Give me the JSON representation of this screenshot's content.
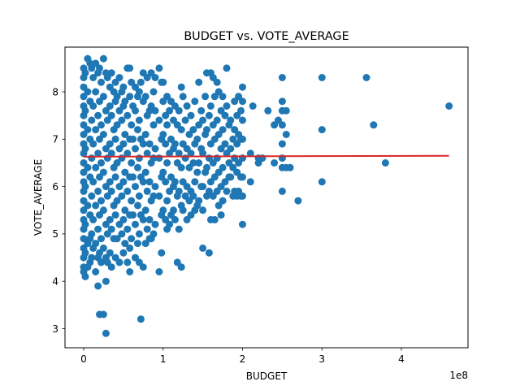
{
  "chart_data": {
    "type": "scatter",
    "title": "BUDGET vs. VOTE_AVERAGE",
    "xlabel": "BUDGET",
    "ylabel": "VOTE_AVERAGE",
    "x_offset_label": "1e8",
    "x_tick_labels": [
      "0",
      "1",
      "2",
      "3",
      "4"
    ],
    "y_tick_labels": [
      "3",
      "4",
      "5",
      "6",
      "7",
      "8"
    ],
    "point_color": "#1f77b4",
    "fit_line_color": "#d62728",
    "grid": false,
    "legend": "none",
    "points": [
      [
        0,
        8.5
      ],
      [
        0,
        8.3
      ],
      [
        0,
        8.1
      ],
      [
        0,
        7.9
      ],
      [
        0,
        7.7
      ],
      [
        0,
        7.5
      ],
      [
        0,
        7.3
      ],
      [
        0,
        7.1
      ],
      [
        0,
        6.9
      ],
      [
        0,
        6.7
      ],
      [
        0,
        6.5
      ],
      [
        0,
        6.3
      ],
      [
        0,
        6.1
      ],
      [
        0,
        5.9
      ],
      [
        0,
        5.7
      ],
      [
        0,
        5.5
      ],
      [
        0,
        5.3
      ],
      [
        0,
        5.1
      ],
      [
        0,
        4.9
      ],
      [
        0,
        4.7
      ],
      [
        0,
        4.5
      ],
      [
        0,
        4.3
      ],
      [
        0,
        4.2
      ],
      [
        2,
        8.4
      ],
      [
        2,
        7.6
      ],
      [
        2,
        6.8
      ],
      [
        2,
        6.0
      ],
      [
        2,
        5.2
      ],
      [
        2,
        4.6
      ],
      [
        2,
        4.1
      ],
      [
        5,
        8.7
      ],
      [
        5,
        8.0
      ],
      [
        5,
        7.2
      ],
      [
        5,
        6.4
      ],
      [
        5,
        5.6
      ],
      [
        5,
        4.8
      ],
      [
        5,
        4.3
      ],
      [
        8,
        8.6
      ],
      [
        8,
        7.8
      ],
      [
        8,
        7.0
      ],
      [
        8,
        6.2
      ],
      [
        8,
        5.4
      ],
      [
        8,
        4.9
      ],
      [
        8,
        4.4
      ],
      [
        10,
        8.5
      ],
      [
        10,
        7.4
      ],
      [
        10,
        6.6
      ],
      [
        10,
        5.8
      ],
      [
        10,
        5.0
      ],
      [
        10,
        4.5
      ],
      [
        12,
        8.3
      ],
      [
        12,
        7.7
      ],
      [
        12,
        6.9
      ],
      [
        12,
        6.1
      ],
      [
        12,
        5.3
      ],
      [
        12,
        4.7
      ],
      [
        15,
        8.6
      ],
      [
        15,
        8.0
      ],
      [
        15,
        7.2
      ],
      [
        15,
        6.4
      ],
      [
        15,
        5.6
      ],
      [
        15,
        4.8
      ],
      [
        15,
        4.2
      ],
      [
        18,
        8.4
      ],
      [
        18,
        7.5
      ],
      [
        18,
        6.7
      ],
      [
        18,
        5.9
      ],
      [
        18,
        5.1
      ],
      [
        18,
        4.5
      ],
      [
        18,
        3.9
      ],
      [
        20,
        8.5
      ],
      [
        20,
        7.8
      ],
      [
        20,
        7.0
      ],
      [
        20,
        6.2
      ],
      [
        20,
        5.4
      ],
      [
        20,
        4.6
      ],
      [
        20,
        3.3
      ],
      [
        22,
        8.2
      ],
      [
        22,
        7.3
      ],
      [
        22,
        6.5
      ],
      [
        22,
        5.7
      ],
      [
        22,
        4.9
      ],
      [
        22,
        4.4
      ],
      [
        25,
        8.7
      ],
      [
        25,
        7.9
      ],
      [
        25,
        7.1
      ],
      [
        25,
        6.3
      ],
      [
        25,
        5.5
      ],
      [
        25,
        4.7
      ],
      [
        25,
        3.3
      ],
      [
        28,
        8.4
      ],
      [
        28,
        7.6
      ],
      [
        28,
        6.8
      ],
      [
        28,
        6.0
      ],
      [
        28,
        5.2
      ],
      [
        28,
        4.5
      ],
      [
        28,
        4.0
      ],
      [
        28,
        2.9
      ],
      [
        30,
        8.3
      ],
      [
        30,
        7.4
      ],
      [
        30,
        6.6
      ],
      [
        30,
        5.8
      ],
      [
        30,
        5.0
      ],
      [
        30,
        4.4
      ],
      [
        33,
        8.1
      ],
      [
        33,
        7.7
      ],
      [
        33,
        6.9
      ],
      [
        33,
        6.1
      ],
      [
        33,
        5.3
      ],
      [
        33,
        4.6
      ],
      [
        35,
        8.4
      ],
      [
        35,
        7.5
      ],
      [
        35,
        6.7
      ],
      [
        35,
        5.9
      ],
      [
        35,
        5.1
      ],
      [
        35,
        4.3
      ],
      [
        38,
        8.0
      ],
      [
        38,
        7.2
      ],
      [
        38,
        6.4
      ],
      [
        38,
        5.6
      ],
      [
        38,
        4.9
      ],
      [
        40,
        8.2
      ],
      [
        40,
        7.8
      ],
      [
        40,
        7.0
      ],
      [
        40,
        6.2
      ],
      [
        40,
        5.4
      ],
      [
        40,
        4.5
      ],
      [
        42,
        7.9
      ],
      [
        42,
        7.3
      ],
      [
        42,
        6.5
      ],
      [
        42,
        5.7
      ],
      [
        42,
        4.9
      ],
      [
        45,
        8.3
      ],
      [
        45,
        7.6
      ],
      [
        45,
        6.8
      ],
      [
        45,
        6.0
      ],
      [
        45,
        5.2
      ],
      [
        45,
        4.4
      ],
      [
        48,
        8.0
      ],
      [
        48,
        7.4
      ],
      [
        48,
        6.6
      ],
      [
        48,
        5.8
      ],
      [
        48,
        5.0
      ],
      [
        50,
        8.1
      ],
      [
        50,
        7.7
      ],
      [
        50,
        6.9
      ],
      [
        50,
        6.1
      ],
      [
        50,
        5.3
      ],
      [
        50,
        4.6
      ],
      [
        52,
        7.8
      ],
      [
        52,
        7.1
      ],
      [
        52,
        6.3
      ],
      [
        52,
        5.5
      ],
      [
        52,
        4.8
      ],
      [
        55,
        8.5
      ],
      [
        55,
        7.5
      ],
      [
        55,
        6.7
      ],
      [
        55,
        5.9
      ],
      [
        55,
        5.1
      ],
      [
        55,
        4.4
      ],
      [
        58,
        8.5
      ],
      [
        58,
        7.9
      ],
      [
        58,
        7.0
      ],
      [
        58,
        6.2
      ],
      [
        58,
        5.4
      ],
      [
        58,
        4.7
      ],
      [
        58,
        4.2
      ],
      [
        60,
        8.2
      ],
      [
        60,
        7.3
      ],
      [
        60,
        6.5
      ],
      [
        60,
        5.7
      ],
      [
        60,
        4.9
      ],
      [
        62,
        7.7
      ],
      [
        62,
        7.0
      ],
      [
        62,
        6.2
      ],
      [
        62,
        5.4
      ],
      [
        65,
        8.1
      ],
      [
        65,
        7.6
      ],
      [
        65,
        6.8
      ],
      [
        65,
        6.0
      ],
      [
        65,
        5.2
      ],
      [
        65,
        4.5
      ],
      [
        68,
        7.9
      ],
      [
        68,
        7.2
      ],
      [
        68,
        6.4
      ],
      [
        68,
        5.6
      ],
      [
        68,
        4.8
      ],
      [
        70,
        8.0
      ],
      [
        70,
        7.4
      ],
      [
        70,
        6.6
      ],
      [
        70,
        5.8
      ],
      [
        70,
        5.0
      ],
      [
        70,
        4.4
      ],
      [
        72,
        8.2
      ],
      [
        72,
        7.0
      ],
      [
        72,
        6.2
      ],
      [
        72,
        5.4
      ],
      [
        72,
        3.2
      ],
      [
        75,
        8.4
      ],
      [
        75,
        7.8
      ],
      [
        75,
        6.9
      ],
      [
        75,
        6.1
      ],
      [
        75,
        5.3
      ],
      [
        75,
        4.3
      ],
      [
        78,
        7.9
      ],
      [
        78,
        7.1
      ],
      [
        78,
        6.3
      ],
      [
        78,
        5.5
      ],
      [
        78,
        4.8
      ],
      [
        80,
        8.3
      ],
      [
        80,
        7.5
      ],
      [
        80,
        6.7
      ],
      [
        80,
        5.9
      ],
      [
        80,
        5.1
      ],
      [
        83,
        7.6
      ],
      [
        83,
        6.9
      ],
      [
        83,
        6.1
      ],
      [
        83,
        5.3
      ],
      [
        83,
        4.9
      ],
      [
        85,
        8.4
      ],
      [
        85,
        7.7
      ],
      [
        85,
        6.5
      ],
      [
        85,
        5.7
      ],
      [
        85,
        4.9
      ],
      [
        88,
        8.0
      ],
      [
        88,
        7.3
      ],
      [
        88,
        6.6
      ],
      [
        88,
        5.8
      ],
      [
        88,
        5.0
      ],
      [
        90,
        8.3
      ],
      [
        90,
        7.6
      ],
      [
        90,
        6.8
      ],
      [
        90,
        6.0
      ],
      [
        90,
        5.2
      ],
      [
        95,
        8.5
      ],
      [
        95,
        7.4
      ],
      [
        95,
        6.6
      ],
      [
        95,
        5.8
      ],
      [
        95,
        4.2
      ],
      [
        98,
        8.2
      ],
      [
        98,
        7.0
      ],
      [
        98,
        6.2
      ],
      [
        98,
        5.4
      ],
      [
        98,
        4.6
      ],
      [
        100,
        8.2
      ],
      [
        100,
        7.8
      ],
      [
        100,
        7.1
      ],
      [
        100,
        6.3
      ],
      [
        100,
        5.5
      ],
      [
        103,
        7.5
      ],
      [
        103,
        6.9
      ],
      [
        103,
        6.1
      ],
      [
        103,
        5.3
      ],
      [
        105,
        7.9
      ],
      [
        105,
        7.3
      ],
      [
        105,
        6.5
      ],
      [
        105,
        5.7
      ],
      [
        105,
        5.1
      ],
      [
        108,
        7.6
      ],
      [
        108,
        6.7
      ],
      [
        108,
        5.9
      ],
      [
        108,
        5.2
      ],
      [
        110,
        7.8
      ],
      [
        110,
        7.0
      ],
      [
        110,
        6.2
      ],
      [
        110,
        5.4
      ],
      [
        113,
        7.4
      ],
      [
        113,
        6.8
      ],
      [
        113,
        6.0
      ],
      [
        113,
        5.5
      ],
      [
        115,
        7.7
      ],
      [
        115,
        6.9
      ],
      [
        115,
        6.1
      ],
      [
        115,
        5.3
      ],
      [
        118,
        7.3
      ],
      [
        118,
        6.5
      ],
      [
        118,
        5.8
      ],
      [
        118,
        4.4
      ],
      [
        120,
        7.6
      ],
      [
        120,
        6.7
      ],
      [
        120,
        5.9
      ],
      [
        120,
        5.1
      ],
      [
        123,
        8.1
      ],
      [
        123,
        7.2
      ],
      [
        123,
        6.4
      ],
      [
        123,
        5.6
      ],
      [
        123,
        4.3
      ],
      [
        125,
        7.9
      ],
      [
        125,
        6.9
      ],
      [
        125,
        6.1
      ],
      [
        125,
        5.5
      ],
      [
        128,
        7.4
      ],
      [
        128,
        6.6
      ],
      [
        128,
        5.8
      ],
      [
        130,
        7.7
      ],
      [
        130,
        6.8
      ],
      [
        130,
        6.0
      ],
      [
        130,
        5.3
      ],
      [
        133,
        7.1
      ],
      [
        133,
        6.4
      ],
      [
        133,
        5.7
      ],
      [
        135,
        7.5
      ],
      [
        135,
        6.7
      ],
      [
        135,
        5.9
      ],
      [
        135,
        5.4
      ],
      [
        138,
        7.2
      ],
      [
        138,
        6.5
      ],
      [
        138,
        5.8
      ],
      [
        140,
        7.8
      ],
      [
        140,
        6.9
      ],
      [
        140,
        6.1
      ],
      [
        140,
        5.5
      ],
      [
        143,
        7.0
      ],
      [
        143,
        6.3
      ],
      [
        143,
        5.6
      ],
      [
        145,
        8.2
      ],
      [
        145,
        7.3
      ],
      [
        145,
        6.5
      ],
      [
        145,
        5.7
      ],
      [
        148,
        7.6
      ],
      [
        148,
        6.8
      ],
      [
        148,
        6.0
      ],
      [
        150,
        7.4
      ],
      [
        150,
        6.7
      ],
      [
        150,
        6.0
      ],
      [
        150,
        5.5
      ],
      [
        150,
        4.7
      ],
      [
        153,
        7.9
      ],
      [
        153,
        7.1
      ],
      [
        153,
        6.3
      ],
      [
        155,
        8.4
      ],
      [
        155,
        7.2
      ],
      [
        155,
        6.4
      ],
      [
        155,
        5.8
      ],
      [
        158,
        7.5
      ],
      [
        158,
        6.6
      ],
      [
        158,
        5.9
      ],
      [
        158,
        4.6
      ],
      [
        160,
        8.4
      ],
      [
        160,
        7.7
      ],
      [
        160,
        6.9
      ],
      [
        160,
        6.1
      ],
      [
        160,
        5.3
      ],
      [
        163,
        8.3
      ],
      [
        163,
        7.3
      ],
      [
        163,
        6.5
      ],
      [
        163,
        5.8
      ],
      [
        165,
        7.9
      ],
      [
        165,
        7.0
      ],
      [
        165,
        6.2
      ],
      [
        165,
        5.3
      ],
      [
        168,
        8.2
      ],
      [
        168,
        7.4
      ],
      [
        168,
        6.6
      ],
      [
        168,
        5.9
      ],
      [
        170,
        8.0
      ],
      [
        170,
        7.1
      ],
      [
        170,
        6.3
      ],
      [
        170,
        5.6
      ],
      [
        173,
        7.6
      ],
      [
        173,
        6.8
      ],
      [
        173,
        6.0
      ],
      [
        173,
        5.4
      ],
      [
        175,
        7.9
      ],
      [
        175,
        7.2
      ],
      [
        175,
        6.4
      ],
      [
        175,
        5.7
      ],
      [
        178,
        7.5
      ],
      [
        178,
        6.9
      ],
      [
        178,
        6.1
      ],
      [
        180,
        8.5
      ],
      [
        180,
        7.7
      ],
      [
        180,
        6.7
      ],
      [
        180,
        5.9
      ],
      [
        183,
        7.3
      ],
      [
        183,
        6.5
      ],
      [
        183,
        6.2
      ],
      [
        185,
        7.4
      ],
      [
        185,
        6.8
      ],
      [
        185,
        6.2
      ],
      [
        188,
        7.0
      ],
      [
        188,
        6.4
      ],
      [
        188,
        5.8
      ],
      [
        190,
        7.8
      ],
      [
        190,
        7.2
      ],
      [
        190,
        6.6
      ],
      [
        190,
        5.9
      ],
      [
        193,
        7.5
      ],
      [
        193,
        6.9
      ],
      [
        193,
        6.3
      ],
      [
        193,
        5.8
      ],
      [
        195,
        7.9
      ],
      [
        195,
        7.1
      ],
      [
        195,
        6.5
      ],
      [
        195,
        5.9
      ],
      [
        198,
        7.6
      ],
      [
        198,
        7.0
      ],
      [
        198,
        6.2
      ],
      [
        198,
        5.8
      ],
      [
        200,
        8.1
      ],
      [
        200,
        7.8
      ],
      [
        200,
        7.4
      ],
      [
        200,
        7.0
      ],
      [
        200,
        6.6
      ],
      [
        200,
        6.2
      ],
      [
        200,
        5.8
      ],
      [
        200,
        5.2
      ],
      [
        210,
        6.7
      ],
      [
        210,
        6.1
      ],
      [
        213,
        7.7
      ],
      [
        220,
        6.6
      ],
      [
        220,
        6.5
      ],
      [
        225,
        6.6
      ],
      [
        232,
        7.6
      ],
      [
        240,
        7.3
      ],
      [
        240,
        6.5
      ],
      [
        245,
        7.4
      ],
      [
        250,
        8.3
      ],
      [
        250,
        7.8
      ],
      [
        250,
        7.6
      ],
      [
        250,
        7.3
      ],
      [
        250,
        6.9
      ],
      [
        250,
        6.6
      ],
      [
        250,
        6.4
      ],
      [
        250,
        5.9
      ],
      [
        255,
        7.6
      ],
      [
        255,
        7.1
      ],
      [
        255,
        6.4
      ],
      [
        260,
        6.4
      ],
      [
        270,
        5.7
      ],
      [
        300,
        8.3
      ],
      [
        300,
        7.2
      ],
      [
        300,
        6.1
      ],
      [
        356,
        8.3
      ],
      [
        365,
        7.3
      ],
      [
        380,
        6.5
      ],
      [
        460,
        7.7
      ]
    ],
    "x_units_note_hidden": "",
    "fit_line": {
      "x": [
        0,
        460
      ],
      "y": [
        6.63,
        6.65
      ]
    }
  }
}
